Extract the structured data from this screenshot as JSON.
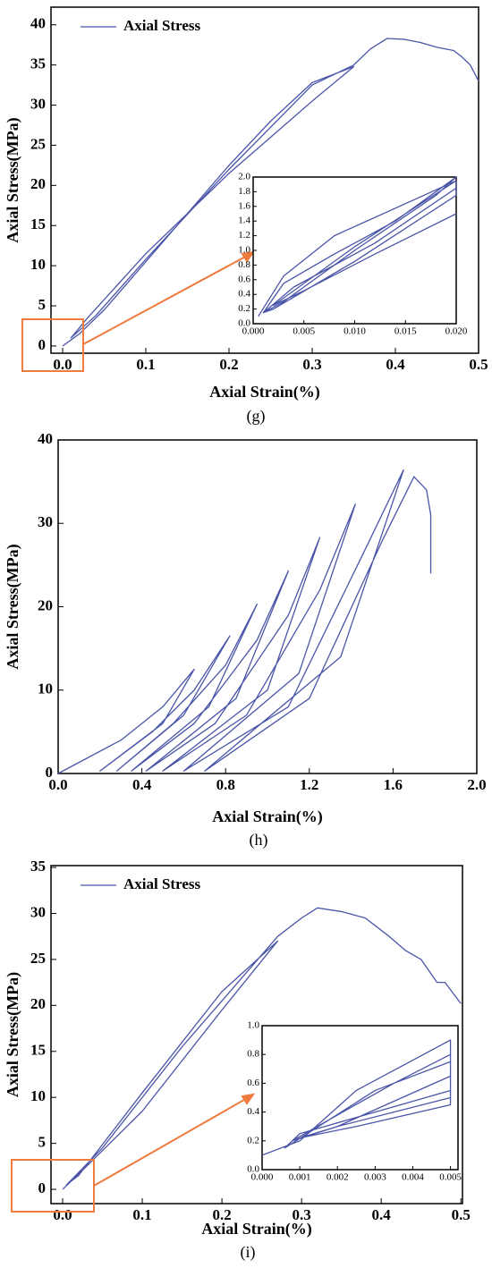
{
  "chart_data": [
    {
      "type": "line",
      "caption": "(g)",
      "x_label": "Axial Strain(%)",
      "y_label": "Axial Stress(MPa)",
      "legend": "upper left",
      "x": [
        0,
        0.02,
        0.05,
        0.1,
        0.15,
        0.2,
        0.25,
        0.3,
        0.33,
        0.35,
        0.3,
        0.2,
        0.1,
        0.03,
        0.01,
        0.04,
        0.1,
        0.2,
        0.3,
        0.35,
        0.37,
        0.39,
        0.41,
        0.43,
        0.45,
        0.47,
        0.48,
        0.49,
        0.5
      ],
      "series": [
        {
          "name": "Axial Stress",
          "color": "#4a55a8",
          "values": [
            0,
            1.5,
            4.5,
            10.5,
            16.5,
            22.5,
            28,
            32.8,
            34,
            34.8,
            30.5,
            21.5,
            11.5,
            3.5,
            1.0,
            3.8,
            10.8,
            22,
            32.5,
            35,
            37,
            38.3,
            38.2,
            37.8,
            37.2,
            36.8,
            36,
            35,
            33
          ]
        }
      ],
      "xlim": [
        -0.014,
        0.5
      ],
      "ylim": [
        -0.9,
        42.2
      ],
      "xticks": [
        {
          "value": 0,
          "label": "0.0"
        },
        0.1,
        0.2,
        0.3,
        0.4,
        0.5
      ],
      "yticks": [
        0,
        5,
        10,
        15,
        20,
        25,
        30,
        35,
        40
      ]
    },
    {
      "type": "line",
      "x": [
        0.0005,
        0.003,
        0.008,
        0.02,
        0.02,
        0.01,
        0.002,
        0.001,
        0.003,
        0.008,
        0.014,
        0.02,
        0.018,
        0.01,
        0.003,
        0.001,
        0.004,
        0.012,
        0.02,
        0.02,
        0.01,
        0.002,
        0.005,
        0.012,
        0.02
      ],
      "series": [
        {
          "color": "#4a55a8",
          "values": [
            0.1,
            0.65,
            1.2,
            1.95,
            1.75,
            0.85,
            0.2,
            0.15,
            0.55,
            0.95,
            1.4,
            2.0,
            1.75,
            1.0,
            0.3,
            0.15,
            0.5,
            1.1,
            1.85,
            1.95,
            1.05,
            0.25,
            0.45,
            0.95,
            1.5
          ]
        }
      ],
      "xlim": [
        0,
        0.02
      ],
      "ylim": [
        0,
        2.0
      ],
      "xticks": [
        {
          "value": 0,
          "label": "0.000"
        },
        0.005,
        {
          "value": 0.01,
          "label": "0.010"
        },
        0.015,
        {
          "value": 0.02,
          "label": "0.020"
        }
      ],
      "yticks": [
        {
          "value": 0,
          "label": "0.0"
        },
        0.2,
        0.4,
        0.6,
        0.8,
        {
          "value": 1,
          "label": "1.0"
        },
        1.2,
        1.4,
        1.6,
        1.8,
        {
          "value": 2,
          "label": "2.0"
        }
      ]
    },
    {
      "type": "line",
      "caption": "(h)",
      "x_label": "Axial Strain(%)",
      "y_label": "Axial Stress(MPa)",
      "x": [
        0,
        0.3,
        0.5,
        0.65,
        0.5,
        0.2,
        0.45,
        0.65,
        0.82,
        0.6,
        0.28,
        0.55,
        0.8,
        0.95,
        0.72,
        0.35,
        0.65,
        0.95,
        1.1,
        0.85,
        0.42,
        0.75,
        1.1,
        1.25,
        1.0,
        0.5,
        0.9,
        1.25,
        1.42,
        1.15,
        0.6,
        1.1,
        1.45,
        1.65,
        1.35,
        0.7,
        1.2,
        1.55,
        1.7,
        1.76,
        1.78,
        1.78
      ],
      "series": [
        {
          "color": "#4a55a8",
          "values": [
            0,
            4,
            8,
            12.5,
            6,
            0.3,
            5,
            10,
            16.5,
            7,
            0.3,
            6,
            13,
            20.3,
            8,
            0.3,
            6,
            16,
            24.3,
            9,
            0.3,
            6,
            19,
            28.3,
            10,
            0.3,
            7,
            22,
            32.3,
            12,
            0.3,
            8,
            26,
            36.4,
            14,
            0.3,
            9,
            28,
            35.6,
            34,
            31,
            24
          ]
        }
      ],
      "xlim": [
        0,
        2.0
      ],
      "ylim": [
        0,
        40
      ],
      "xticks": [
        {
          "value": 0,
          "label": "0.0"
        },
        0.4,
        0.8,
        1.2,
        1.6,
        {
          "value": 2,
          "label": "2.0"
        }
      ],
      "yticks": [
        0,
        10,
        20,
        30,
        40
      ]
    },
    {
      "type": "line",
      "caption": "(i)",
      "x_label": "Axial Strain(%)",
      "y_label": "Axial Stress(MPa)",
      "legend": "upper left",
      "x": [
        0,
        0.03,
        0.1,
        0.2,
        0.27,
        0.2,
        0.1,
        0.02,
        0.005,
        0.05,
        0.15,
        0.25,
        0.27,
        0.3,
        0.32,
        0.35,
        0.38,
        0.41,
        0.43,
        0.45,
        0.47,
        0.48,
        0.5
      ],
      "series": [
        {
          "name": "Axial Stress",
          "color": "#4a55a8",
          "values": [
            0,
            2.5,
            8.5,
            19.5,
            27,
            21.5,
            10.5,
            1.5,
            0.5,
            4.5,
            15.5,
            25.5,
            27.5,
            29.5,
            30.6,
            30.2,
            29.5,
            27.5,
            26,
            25,
            22.5,
            22.5,
            20.2
          ]
        }
      ],
      "xlim": [
        -0.0146,
        0.502
      ],
      "ylim": [
        -1.55,
        35.2
      ],
      "xticks": [
        {
          "value": 0,
          "label": "0.0"
        },
        0.1,
        0.2,
        0.3,
        0.4,
        0.5
      ],
      "yticks": [
        0,
        5,
        10,
        15,
        20,
        25,
        30,
        35
      ]
    },
    {
      "type": "line",
      "x": [
        0,
        0.001,
        0.0025,
        0.005,
        0.005,
        0.003,
        0.001,
        0.0006,
        0.0015,
        0.003,
        0.005,
        0.005,
        0.002,
        0.0008,
        0.0018,
        0.0035,
        0.005,
        0.005,
        0.0025,
        0.001,
        0.002,
        0.005
      ],
      "series": [
        {
          "color": "#4a55a8",
          "values": [
            0.1,
            0.2,
            0.55,
            0.9,
            0.55,
            0.4,
            0.25,
            0.15,
            0.3,
            0.55,
            0.75,
            0.5,
            0.3,
            0.2,
            0.35,
            0.6,
            0.8,
            0.45,
            0.3,
            0.22,
            0.3,
            0.65
          ]
        }
      ],
      "xlim": [
        0,
        0.0052
      ],
      "ylim": [
        0,
        1.0
      ],
      "xticks": [
        {
          "value": 0,
          "label": "0.000"
        },
        0.001,
        0.002,
        0.003,
        0.004,
        0.005
      ],
      "yticks": [
        {
          "value": 0,
          "label": "0.0"
        },
        0.2,
        0.4,
        0.6,
        0.8,
        {
          "value": 1,
          "label": "1.0"
        }
      ]
    }
  ]
}
